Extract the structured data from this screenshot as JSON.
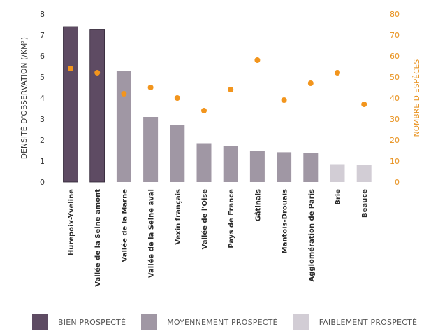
{
  "chart_data": {
    "type": "bar",
    "categories": [
      "Hurepoix-Yveline",
      "Vallée de la Seine amont",
      "Vallée de la Marne",
      "Vallée de la Seine aval",
      "Vexin français",
      "Vallée de l'Oise",
      "Pays de France",
      "Gâtinais",
      "Mantois-Drouais",
      "Agglomération de Paris",
      "Brie",
      "Beauce"
    ],
    "series": [
      {
        "axis": "left",
        "kind": "bar",
        "values": [
          7.4,
          7.25,
          5.3,
          3.1,
          2.7,
          1.85,
          1.7,
          1.5,
          1.42,
          1.37,
          0.85,
          0.8
        ],
        "prospection": [
          "bien",
          "bien",
          "moyen",
          "moyen",
          "moyen",
          "moyen",
          "moyen",
          "moyen",
          "moyen",
          "moyen",
          "faible",
          "faible"
        ]
      },
      {
        "axis": "right",
        "kind": "scatter",
        "values": [
          54,
          52,
          42,
          45,
          40,
          34,
          44,
          58,
          39,
          47,
          52,
          37
        ]
      }
    ],
    "ylabel": "DENSITÉ D'OBSERVATION (/KM²)",
    "ylabel_right": "NOMBRE D'ESPÈCES",
    "ylim": [
      0,
      8
    ],
    "ylim_right": [
      0,
      80
    ],
    "yticks": [
      0,
      1,
      2,
      3,
      4,
      5,
      6,
      7,
      8
    ],
    "yticks_right": [
      0,
      10,
      20,
      30,
      40,
      50,
      60,
      70,
      80
    ],
    "grid": false,
    "legend_position": "bottom",
    "legend": [
      {
        "key": "bien",
        "label": "BIEN PROSPECTÉ"
      },
      {
        "key": "moyen",
        "label": "MOYENNEMENT PROSPECTÉ"
      },
      {
        "key": "faible",
        "label": "FAIBLEMENT PROSPECTÉ"
      }
    ]
  },
  "colors": {
    "bien": "#5e4b63",
    "moyen": "#a097a4",
    "faible": "#d2cdd5",
    "dot": "#f2951d",
    "right_axis": "#e8901b",
    "bar_outline": "#2e2333"
  }
}
